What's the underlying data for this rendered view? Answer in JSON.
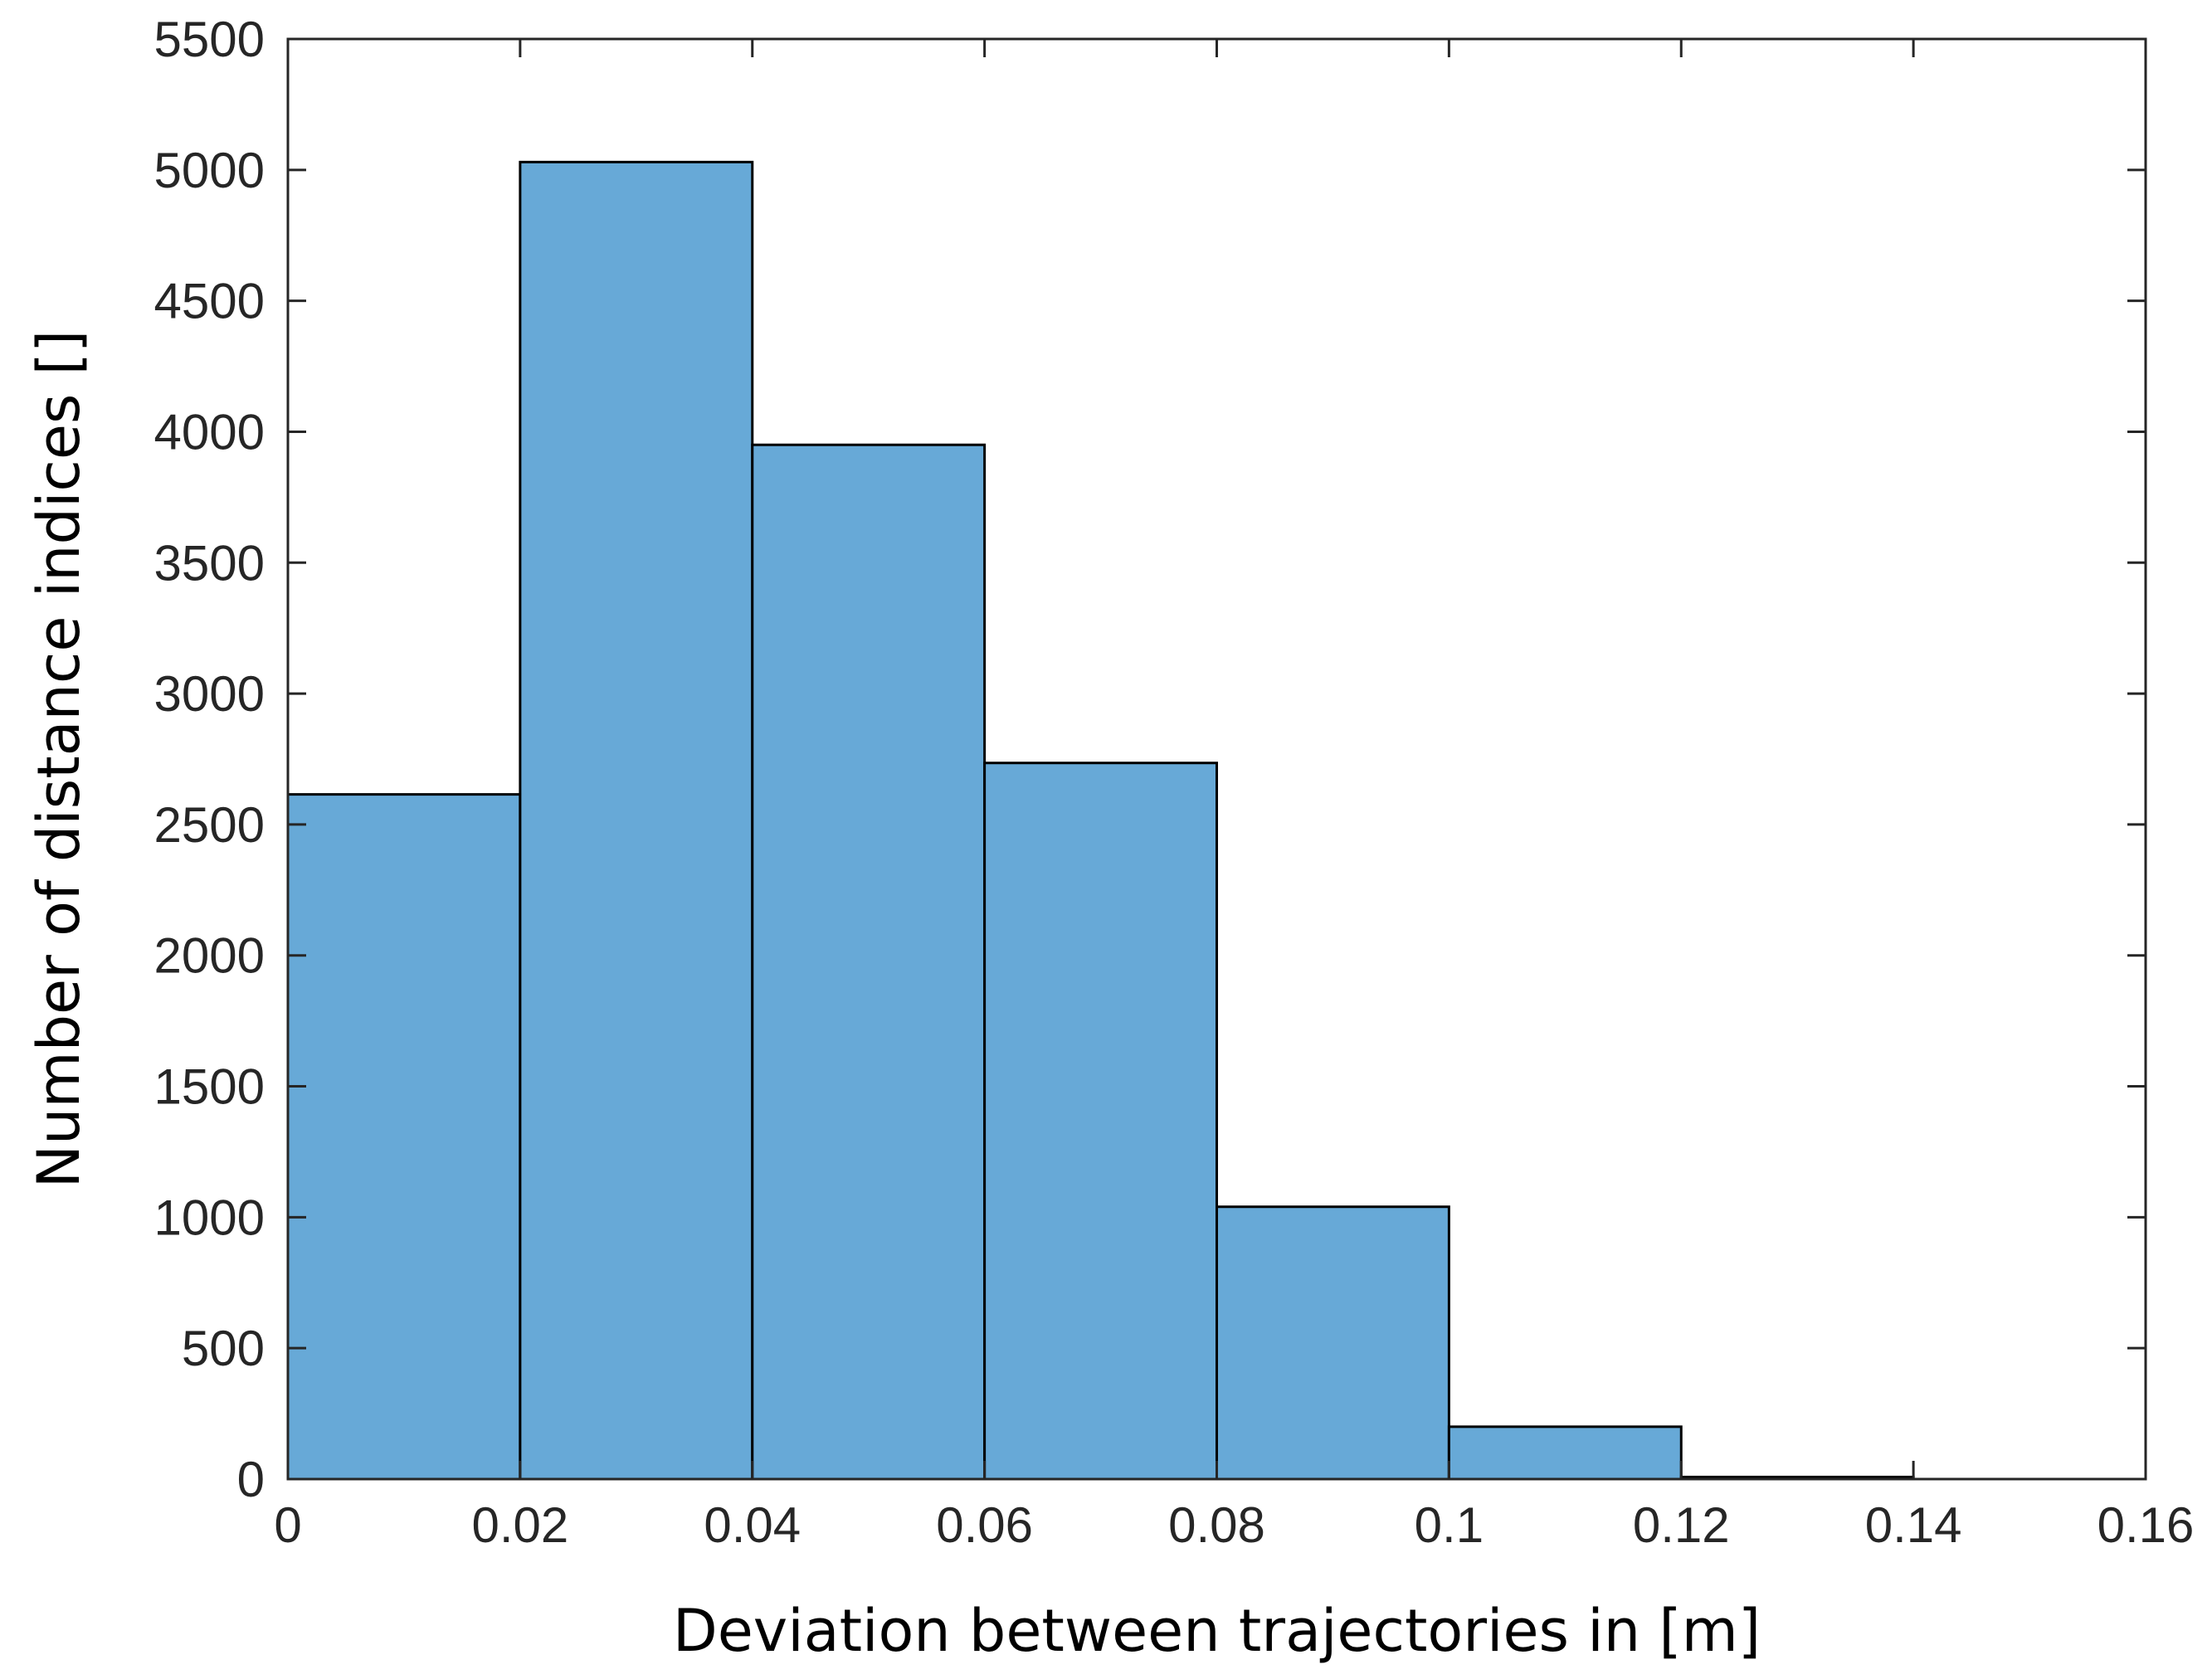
{
  "chart_data": {
    "type": "bar",
    "subtype": "histogram",
    "title": "",
    "xlabel": "Deviation between trajectories in [m]",
    "ylabel": "Number of distance indices []",
    "bin_edges": [
      0,
      0.02,
      0.04,
      0.06,
      0.08,
      0.1,
      0.12,
      0.14
    ],
    "values": [
      2615,
      5030,
      3950,
      2735,
      1040,
      200,
      8
    ],
    "xlim": [
      0,
      0.16
    ],
    "ylim": [
      0,
      5500
    ],
    "xticks": [
      0,
      0.02,
      0.04,
      0.06,
      0.08,
      0.1,
      0.12,
      0.14,
      0.16
    ],
    "xtick_labels": [
      "0",
      "0.02",
      "0.04",
      "0.06",
      "0.08",
      "0.1",
      "0.12",
      "0.14",
      "0.16"
    ],
    "yticks": [
      0,
      500,
      1000,
      1500,
      2000,
      2500,
      3000,
      3500,
      4000,
      4500,
      5000,
      5500
    ],
    "ytick_labels": [
      "0",
      "500",
      "1000",
      "1500",
      "2000",
      "2500",
      "3000",
      "3500",
      "4000",
      "4500",
      "5000",
      "5500"
    ],
    "bar_color": "#67a9d7",
    "edge_color": "#000000",
    "grid": false
  }
}
